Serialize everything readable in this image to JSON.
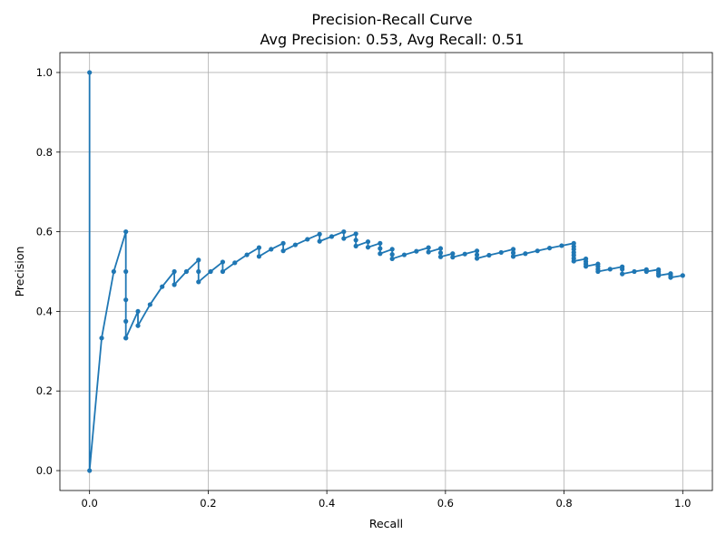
{
  "chart_data": {
    "type": "line",
    "title": "Precision-Recall Curve",
    "subtitle": "Avg Precision: 0.53, Avg Recall: 0.51",
    "xlabel": "Recall",
    "ylabel": "Precision",
    "xlim": [
      -0.05,
      1.05
    ],
    "ylim": [
      -0.05,
      1.05
    ],
    "xticks": [
      "0.0",
      "0.2",
      "0.4",
      "0.6",
      "0.8",
      "1.0"
    ],
    "yticks": [
      "0.0",
      "0.2",
      "0.4",
      "0.6",
      "0.8",
      "1.0"
    ],
    "grid": true,
    "series_color": "#1f77b4",
    "series": [
      {
        "x": [
          0.0,
          0.0,
          0.0204,
          0.0408,
          0.0612,
          0.0612,
          0.0612,
          0.0612,
          0.0612,
          0.0612,
          0.0816,
          0.0816,
          0.102,
          0.1224,
          0.1429,
          0.1429,
          0.1633,
          0.1837,
          0.1837,
          0.1837,
          0.2041,
          0.2245,
          0.2245,
          0.2449,
          0.2653,
          0.2857,
          0.2857,
          0.3061,
          0.3265,
          0.3265,
          0.3469,
          0.3673,
          0.3878,
          0.3878,
          0.4082,
          0.4286,
          0.4286,
          0.449,
          0.449,
          0.449,
          0.4694,
          0.4694,
          0.4898,
          0.4898,
          0.4898,
          0.5102,
          0.5102,
          0.5102,
          0.5306,
          0.551,
          0.5714,
          0.5714,
          0.5918,
          0.5918,
          0.5918,
          0.6122,
          0.6122,
          0.6327,
          0.6531,
          0.6531,
          0.6531,
          0.6735,
          0.6939,
          0.7143,
          0.7143,
          0.7143,
          0.7143,
          0.7347,
          0.7551,
          0.7755,
          0.7959,
          0.8163,
          0.8163,
          0.8163,
          0.8163,
          0.8163,
          0.8163,
          0.8163,
          0.8367,
          0.8367,
          0.8367,
          0.8367,
          0.8571,
          0.8571,
          0.8571,
          0.8571,
          0.8776,
          0.898,
          0.898,
          0.898,
          0.9184,
          0.9388,
          0.9388,
          0.9592,
          0.9592,
          0.9592,
          0.9592,
          0.9796,
          0.9796,
          0.9796,
          1.0
        ],
        "y": [
          1.0,
          0.0,
          0.333,
          0.5,
          0.6,
          0.5,
          0.429,
          0.375,
          0.333,
          0.333,
          0.4,
          0.364,
          0.417,
          0.462,
          0.5,
          0.467,
          0.5,
          0.529,
          0.5,
          0.474,
          0.5,
          0.524,
          0.5,
          0.522,
          0.542,
          0.56,
          0.538,
          0.556,
          0.571,
          0.552,
          0.567,
          0.581,
          0.594,
          0.576,
          0.588,
          0.6,
          0.583,
          0.595,
          0.579,
          0.564,
          0.575,
          0.561,
          0.571,
          0.558,
          0.545,
          0.556,
          0.543,
          0.532,
          0.542,
          0.551,
          0.56,
          0.549,
          0.558,
          0.547,
          0.537,
          0.545,
          0.536,
          0.544,
          0.552,
          0.542,
          0.533,
          0.541,
          0.548,
          0.556,
          0.547,
          0.538,
          0.538,
          0.545,
          0.552,
          0.559,
          0.565,
          0.571,
          0.563,
          0.556,
          0.548,
          0.541,
          0.533,
          0.526,
          0.532,
          0.525,
          0.519,
          0.513,
          0.519,
          0.513,
          0.506,
          0.5,
          0.506,
          0.512,
          0.506,
          0.494,
          0.5,
          0.505,
          0.5,
          0.505,
          0.5,
          0.495,
          0.49,
          0.495,
          0.49,
          0.485,
          0.49
        ]
      }
    ]
  }
}
